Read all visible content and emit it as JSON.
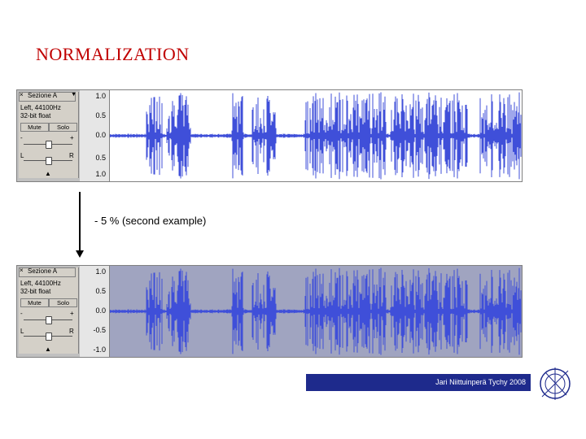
{
  "title": "NORMALIZATION",
  "note": "- 5 % (second example)",
  "footer": "Jari Niittuinperä Tychy 2008",
  "track1": {
    "name": "Sezione A",
    "info1": "Left, 44100Hz",
    "info2": "32-bit float",
    "mute_label": "Mute",
    "solo_label": "Solo",
    "pan_left": "L",
    "pan_right": "R",
    "gain_minus": "-",
    "gain_plus": "+",
    "ruler": [
      "1.0",
      "0.5",
      "0.0",
      "0.5",
      "1.0"
    ]
  },
  "track2": {
    "name": "Sezione A",
    "info1": "Left, 44100Hz",
    "info2": "32-bit float",
    "mute_label": "Mute",
    "solo_label": "Solo",
    "pan_left": "L",
    "pan_right": "R",
    "gain_minus": "-",
    "gain_plus": "+",
    "ruler": [
      "1.0",
      "0.5",
      "0.0",
      "-0.5",
      "-1.0"
    ]
  },
  "colors": {
    "title": "#c00000",
    "waveform": "#3f4fd9",
    "footer_bg": "#1e2a8c"
  }
}
